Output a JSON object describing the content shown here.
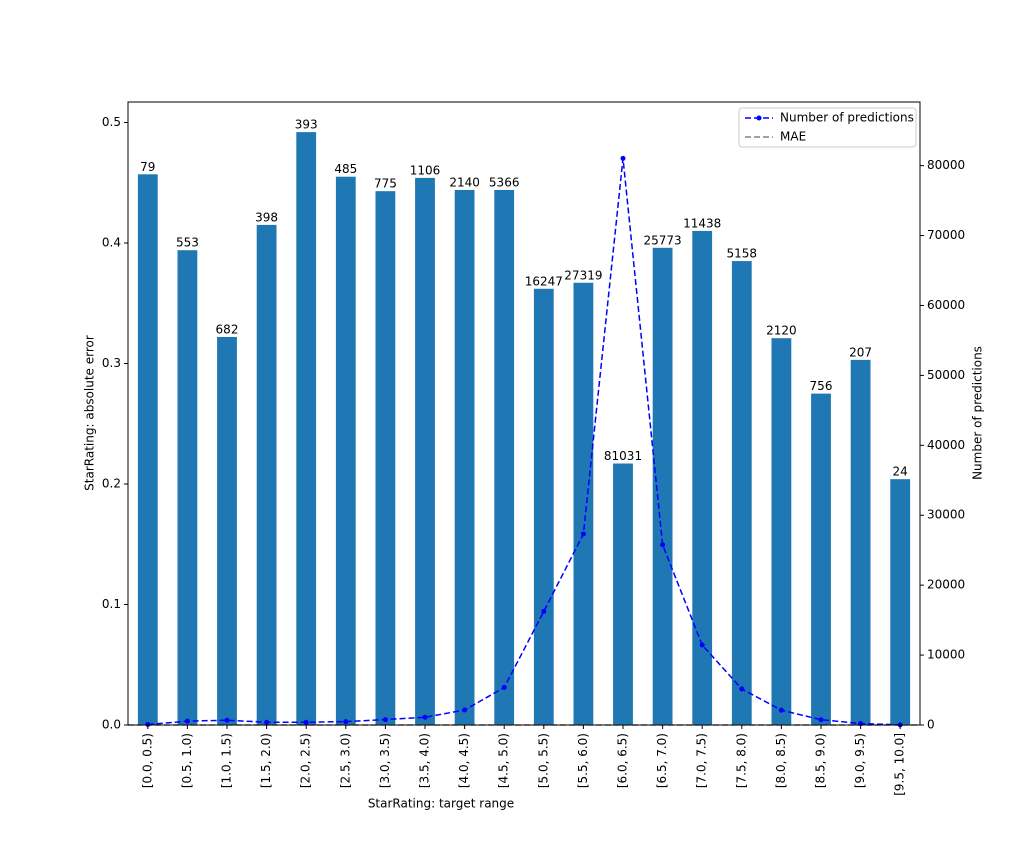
{
  "chart_data": {
    "type": "bar",
    "xlabel": "StarRating: target range",
    "ylabel": "StarRating: absolute error",
    "y2label": "Number of predictions",
    "categories": [
      "[0.0, 0.5)",
      "[0.5, 1.0)",
      "[1.0, 1.5)",
      "[1.5, 2.0)",
      "[2.0, 2.5)",
      "[2.5, 3.0)",
      "[3.0, 3.5)",
      "[3.5, 4.0)",
      "[4.0, 4.5)",
      "[4.5, 5.0)",
      "[5.0, 5.5)",
      "[5.5, 6.0)",
      "[6.0, 6.5)",
      "[6.5, 7.0)",
      "[7.0, 7.5)",
      "[7.5, 8.0)",
      "[8.0, 8.5)",
      "[8.5, 9.0)",
      "[9.0, 9.5)",
      "[9.5, 10.0]"
    ],
    "bars": {
      "color": "#1f77b4",
      "values": [
        0.457,
        0.394,
        0.322,
        0.415,
        0.492,
        0.455,
        0.443,
        0.454,
        0.444,
        0.444,
        0.362,
        0.367,
        0.217,
        0.396,
        0.41,
        0.385,
        0.321,
        0.275,
        0.303,
        0.204
      ]
    },
    "series": [
      {
        "name": "Number of predictions",
        "color": "#0000ff",
        "axis": "y2",
        "values": [
          79,
          553,
          682,
          398,
          393,
          485,
          775,
          1106,
          2140,
          5366,
          16247,
          27319,
          81031,
          25773,
          11438,
          5158,
          2120,
          756,
          207,
          24
        ]
      },
      {
        "name": "MAE",
        "color": "#808080",
        "axis": "y2",
        "value": 0.3
      }
    ],
    "ylim": [
      0,
      0.517
    ],
    "yticks": [
      {
        "value": 0,
        "label": "0.0"
      },
      0.1,
      0.2,
      0.3,
      0.4,
      0.5
    ],
    "y2lim": [
      0,
      89100
    ],
    "y2ticks": [
      0,
      10000,
      20000,
      30000,
      40000,
      50000,
      60000,
      70000,
      80000
    ],
    "legend": "upper right"
  }
}
